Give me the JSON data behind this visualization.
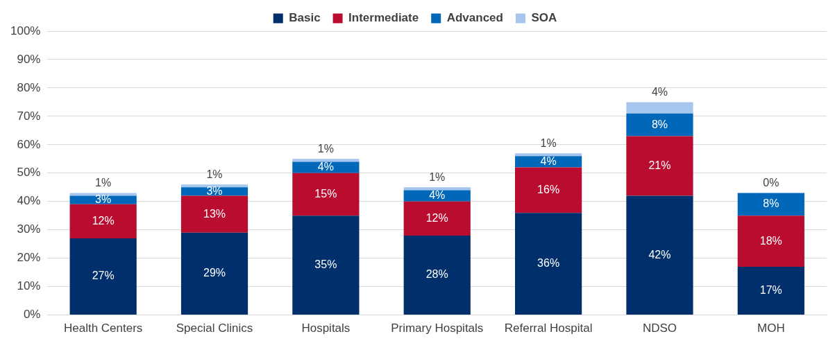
{
  "chart_data": {
    "type": "bar",
    "stacked": true,
    "categories": [
      "Health Centers",
      "Special Clinics",
      "Hospitals",
      "Primary Hospitals",
      "Referral Hospital",
      "NDSO",
      "MOH"
    ],
    "series": [
      {
        "name": "Basic",
        "color": "#002f6c",
        "values": [
          27,
          29,
          35,
          28,
          36,
          42,
          17
        ],
        "value_labels": [
          "27%",
          "29%",
          "35%",
          "28%",
          "36%",
          "42%",
          "17%"
        ]
      },
      {
        "name": "Intermediate",
        "color": "#ba0c2f",
        "values": [
          12,
          13,
          15,
          12,
          16,
          21,
          18
        ],
        "value_labels": [
          "12%",
          "13%",
          "15%",
          "12%",
          "16%",
          "21%",
          "18%"
        ]
      },
      {
        "name": "Advanced",
        "color": "#0067b9",
        "values": [
          3,
          3,
          4,
          4,
          4,
          8,
          8
        ],
        "value_labels": [
          "3%",
          "3%",
          "4%",
          "4%",
          "4%",
          "8%",
          "8%"
        ]
      },
      {
        "name": "SOA",
        "color": "#a7c6ed",
        "values": [
          1,
          1,
          1,
          1,
          1,
          4,
          0
        ],
        "value_labels": [
          "1%",
          "1%",
          "1%",
          "1%",
          "1%",
          "4%",
          "0%"
        ]
      }
    ],
    "ylim": [
      0,
      100
    ],
    "yticks": [
      {
        "value": 0,
        "label": "0%"
      },
      {
        "value": 10,
        "label": "10%"
      },
      {
        "value": 20,
        "label": "20%"
      },
      {
        "value": 30,
        "label": "30%"
      },
      {
        "value": 40,
        "label": "40%"
      },
      {
        "value": 50,
        "label": "50%"
      },
      {
        "value": 60,
        "label": "60%"
      },
      {
        "value": 70,
        "label": "70%"
      },
      {
        "value": 80,
        "label": "80%"
      },
      {
        "value": 90,
        "label": "90%"
      },
      {
        "value": 100,
        "label": "100%"
      }
    ],
    "grid": "y",
    "legend": "top"
  }
}
